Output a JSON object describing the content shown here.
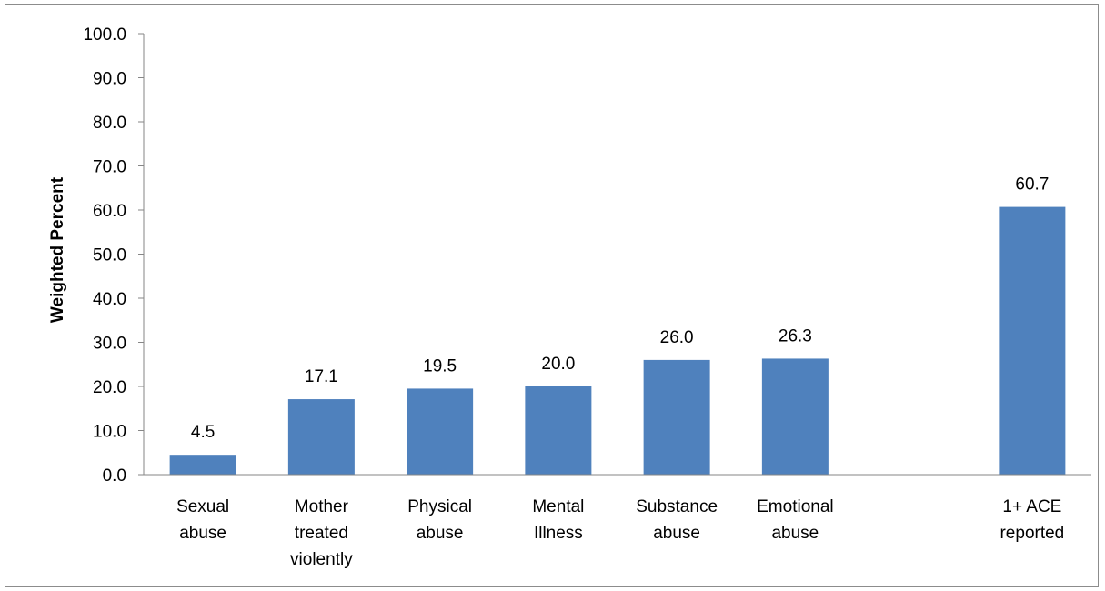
{
  "chart_data": {
    "type": "bar",
    "categories": [
      [
        "Sexual",
        "abuse"
      ],
      [
        "Mother",
        "treated",
        "violently"
      ],
      [
        "Physical",
        "abuse"
      ],
      [
        "Mental",
        "Illness"
      ],
      [
        "Substance",
        "abuse"
      ],
      [
        "Emotional",
        "abuse"
      ],
      [],
      [
        "1+ ACE",
        "reported"
      ]
    ],
    "values": [
      4.5,
      17.1,
      19.5,
      20.0,
      26.0,
      26.3,
      null,
      60.7
    ],
    "data_labels": [
      "4.5",
      "17.1",
      "19.5",
      "20.0",
      "26.0",
      "26.3",
      "",
      "60.7"
    ],
    "title": "",
    "xlabel": "",
    "ylabel": "Weighted Percent",
    "ylim": [
      0,
      100
    ],
    "yticks": [
      "0.0",
      "10.0",
      "20.0",
      "30.0",
      "40.0",
      "50.0",
      "60.0",
      "70.0",
      "80.0",
      "90.0",
      "100.0"
    ],
    "bar_color": "#4f81bd",
    "grid": false,
    "legend": "none"
  }
}
